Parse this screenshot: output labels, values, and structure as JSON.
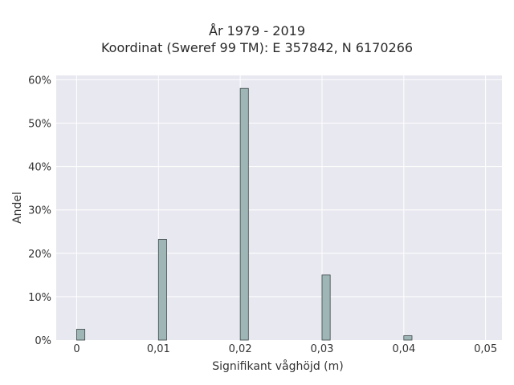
{
  "chart_data": {
    "type": "bar",
    "title_lines": [
      "År 1979 - 2019",
      "Koordinat (Sweref 99 TM): E 357842, N 6170266"
    ],
    "xlabel": "Signifikant våghöjd (m)",
    "ylabel": "Andel",
    "x": [
      0,
      0.01,
      0.02,
      0.03,
      0.04
    ],
    "values": [
      2.5,
      23.2,
      58.0,
      15.0,
      1.0
    ],
    "xlim": [
      -0.0025,
      0.052
    ],
    "ylim": [
      0,
      61
    ],
    "xticks": [
      0,
      0.01,
      0.02,
      0.03,
      0.04,
      0.05
    ],
    "xtick_labels": [
      "0",
      "0,01",
      "0,02",
      "0,03",
      "0,04",
      "0,05"
    ],
    "yticks": [
      0,
      10,
      20,
      30,
      40,
      50,
      60
    ],
    "ytick_labels": [
      "0%",
      "10%",
      "20%",
      "30%",
      "40%",
      "50%",
      "60%"
    ],
    "grid": true,
    "colors": {
      "bar_fill": "#9fb6b6",
      "bar_stroke": "#3b4545",
      "plot_background": "#e8e8f0",
      "grid": "#ffffff"
    }
  }
}
